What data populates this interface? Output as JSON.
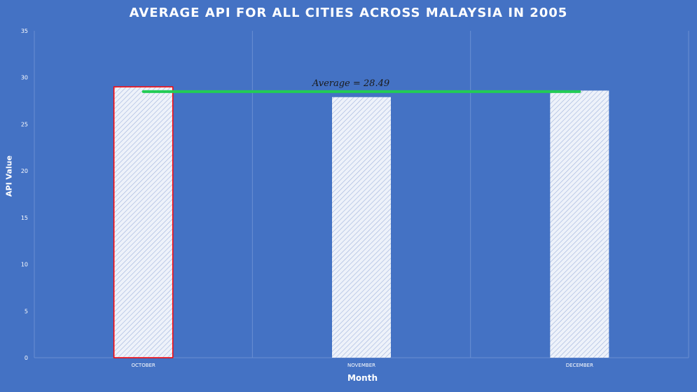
{
  "chart_data": {
    "type": "bar",
    "title": "Average API for all cities across Malaysia in 2005",
    "xlabel": "Month",
    "ylabel": "API Value",
    "categories": [
      "OCTOBER",
      "NOVEMBER",
      "DECEMBER"
    ],
    "values": [
      29.0,
      27.9,
      28.6
    ],
    "ylim": [
      0,
      35
    ],
    "yticks": [
      0,
      5,
      10,
      15,
      20,
      25,
      30,
      35
    ],
    "grid": "vertical",
    "highlighted_category": "OCTOBER",
    "average": {
      "value": 28.49,
      "label": "Average = 28.49"
    },
    "colors": {
      "background": "#4472c4",
      "bar_fill": "#dfe6f4",
      "highlight_border": "#ff0000",
      "average_line": "#22cc55",
      "text": "#ffffff"
    }
  }
}
